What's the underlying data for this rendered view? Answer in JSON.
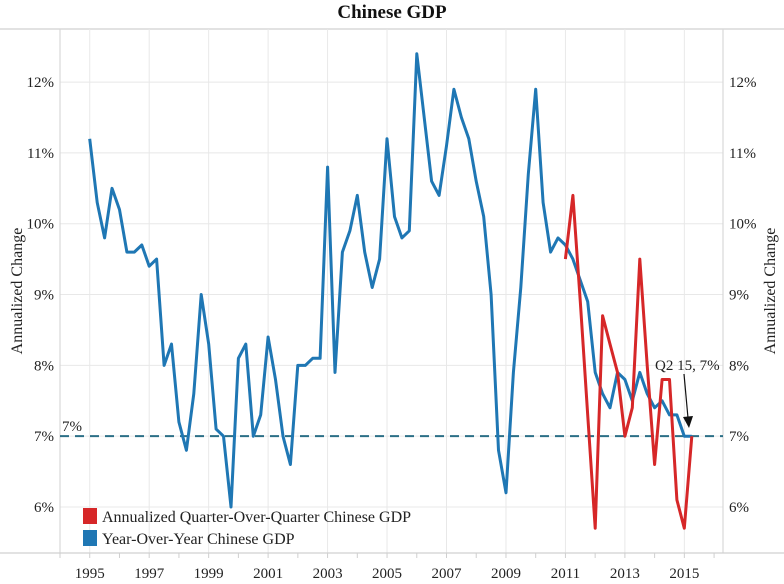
{
  "chart_data": {
    "type": "line",
    "title": "Chinese GDP",
    "ylabel": "Annualized Change",
    "ylabel_right": "Annualized Change",
    "xlim": [
      1994,
      2016.3
    ],
    "ylim": [
      5.35,
      12.75
    ],
    "x_ticks": [
      "1995",
      "1997",
      "1999",
      "2001",
      "2003",
      "2005",
      "2007",
      "2009",
      "2011",
      "2013",
      "2015"
    ],
    "y_ticks": [
      6,
      7,
      8,
      9,
      10,
      11,
      12
    ],
    "y_tick_labels": [
      "6%",
      "7%",
      "8%",
      "9%",
      "10%",
      "11%",
      "12%"
    ],
    "grid": true,
    "legend_position": "bottom-left",
    "reference_line": {
      "value": 7,
      "label": "7%",
      "color": "#2b6f86",
      "style": "dashed"
    },
    "annotation": {
      "text": "Q2 15, 7%",
      "x": "2015 Q2",
      "y": 7
    },
    "series": [
      {
        "name": "Annualized Quarter-Over-Quarter Chinese GDP",
        "color": "#d62728",
        "start": "2011 Q1",
        "frequency": "quarterly",
        "values": [
          9.5,
          10.4,
          8.9,
          7.3,
          5.7,
          8.7,
          8.3,
          7.9,
          7.0,
          7.4,
          9.5,
          8.0,
          6.6,
          7.8,
          7.8,
          6.1,
          5.7,
          7.0
        ]
      },
      {
        "name": "Year-Over-Year Chinese GDP",
        "color": "#1f77b4",
        "start": "1995 Q1",
        "frequency": "quarterly",
        "values": [
          11.2,
          10.3,
          9.8,
          10.5,
          10.2,
          9.6,
          9.6,
          9.7,
          9.4,
          9.5,
          8.0,
          8.3,
          7.2,
          6.8,
          7.6,
          9.0,
          8.3,
          7.1,
          7.0,
          6.0,
          8.1,
          8.3,
          7.0,
          7.3,
          8.4,
          7.8,
          7.0,
          6.6,
          8.0,
          8.0,
          8.1,
          8.1,
          10.8,
          7.9,
          9.6,
          9.9,
          10.4,
          9.6,
          9.1,
          9.5,
          11.2,
          10.1,
          9.8,
          9.9,
          12.4,
          11.5,
          10.6,
          10.4,
          11.1,
          11.9,
          11.5,
          11.2,
          10.6,
          10.1,
          9.0,
          6.8,
          6.2,
          7.9,
          9.1,
          10.7,
          11.9,
          10.3,
          9.6,
          9.8,
          9.7,
          9.5,
          9.2,
          8.9,
          7.9,
          7.6,
          7.4,
          7.9,
          7.8,
          7.5,
          7.9,
          7.6,
          7.4,
          7.5,
          7.3,
          7.3,
          7.0,
          7.0
        ]
      }
    ]
  }
}
